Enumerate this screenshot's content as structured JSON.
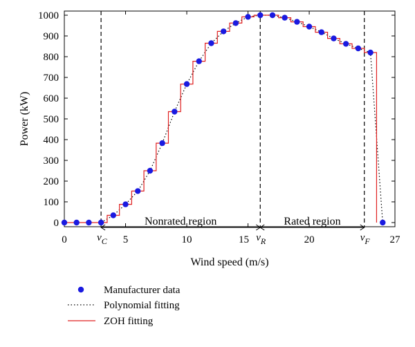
{
  "chart_data": {
    "type": "line",
    "xlabel": "Wind speed (m/s)",
    "ylabel": "Power (kW)",
    "xlim": [
      0,
      27
    ],
    "ylim": [
      -20,
      1020
    ],
    "xticks": [
      0,
      5,
      10,
      15,
      20,
      27
    ],
    "yticks": [
      0,
      100,
      200,
      300,
      400,
      500,
      600,
      700,
      800,
      900,
      1000
    ],
    "grid": false,
    "legend_position": "bottom-left",
    "series": [
      {
        "name": "Manufacturer data",
        "style": "markers",
        "color": "#1a1ae0",
        "x": [
          0,
          1,
          2,
          3,
          4,
          5,
          6,
          7,
          8,
          9,
          10,
          11,
          12,
          13,
          14,
          15,
          16,
          17,
          18,
          19,
          20,
          21,
          22,
          23,
          24,
          25,
          26
        ],
        "y": [
          0,
          0,
          0,
          0,
          35,
          88,
          152,
          250,
          383,
          535,
          668,
          778,
          865,
          922,
          962,
          992,
          1000,
          1000,
          988,
          968,
          945,
          918,
          888,
          862,
          840,
          820,
          0
        ]
      },
      {
        "name": "Polynomial fitting",
        "style": "dotted",
        "color": "#000000",
        "x": [
          3,
          4,
          5,
          6,
          7,
          8,
          9,
          10,
          11,
          12,
          13,
          14,
          15,
          16,
          17,
          18,
          19,
          20,
          21,
          22,
          23,
          24,
          25,
          26
        ],
        "y": [
          0,
          35,
          88,
          152,
          250,
          383,
          535,
          668,
          778,
          865,
          922,
          962,
          992,
          1000,
          1000,
          988,
          968,
          945,
          918,
          888,
          862,
          840,
          820,
          0
        ]
      },
      {
        "name": "ZOH fitting",
        "style": "step",
        "color": "#e02020",
        "x": [
          0,
          3,
          3.5,
          4.5,
          5.5,
          6.5,
          7.5,
          8.5,
          9.5,
          10.5,
          11.5,
          12.5,
          13.5,
          14.5,
          15.5,
          16.5,
          17.5,
          18.5,
          19.5,
          20.5,
          21.5,
          22.5,
          23.5,
          24.5,
          25.5
        ],
        "y": [
          0,
          0,
          35,
          88,
          152,
          250,
          383,
          535,
          668,
          778,
          865,
          922,
          962,
          992,
          1000,
          1000,
          988,
          968,
          945,
          918,
          888,
          862,
          840,
          820,
          0
        ]
      }
    ],
    "vertical_lines": [
      {
        "x": 3,
        "label": "ν",
        "sub": "C"
      },
      {
        "x": 16,
        "label": "ν",
        "sub": "R"
      },
      {
        "x": 24.5,
        "label": "ν",
        "sub": "F"
      }
    ],
    "regions": [
      {
        "label": "Nonrated region",
        "x_start": 3,
        "x_end": 16
      },
      {
        "label": "Rated region",
        "x_start": 16,
        "x_end": 24.5
      }
    ]
  }
}
